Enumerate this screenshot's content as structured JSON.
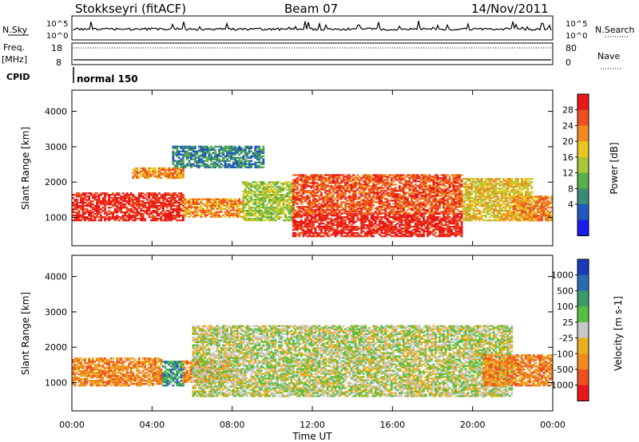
{
  "header": {
    "station": "Stokkseyri (fitACF)",
    "beam": "Beam 07",
    "date": "14/Nov/2011"
  },
  "status": {
    "nsky_label": "N.Sky",
    "nsearch_label": "N.Search",
    "left_ticks": [
      "10^5",
      "10^0"
    ],
    "right_ticks": [
      "10^5",
      "10^0"
    ],
    "freq_label": "Freq.",
    "freq_unit": "[MHz]",
    "freq_ticks": [
      "18",
      "8"
    ],
    "nave_label": "Nave",
    "nave_ticks": [
      "80",
      "0"
    ],
    "cpid_label": "CPID",
    "cpid_value": "normal 150"
  },
  "chart_data": [
    {
      "type": "heatmap",
      "title": "",
      "xlabel": "Time UT",
      "ylabel": "Slant Range [km]",
      "xlim": [
        "00:00",
        "24:00"
      ],
      "ylim": [
        200,
        4600
      ],
      "x_ticks": [
        "00:00",
        "04:00",
        "08:00",
        "12:00",
        "16:00",
        "20:00",
        "00:00"
      ],
      "y_ticks": [
        1000,
        2000,
        3000,
        4000
      ],
      "colorbar": {
        "label": "Power [dB]",
        "ticks": [
          "4",
          "8",
          "12",
          "16",
          "20",
          "24",
          "28"
        ],
        "colors": [
          "#1a1aee",
          "#2058c0",
          "#3a8a78",
          "#58b048",
          "#a8c838",
          "#e8c820",
          "#f08a20",
          "#ee5020",
          "#e81818"
        ]
      },
      "regions": [
        {
          "t": [
            0.0,
            5.5
          ],
          "r": [
            900,
            1700
          ],
          "level": 8
        },
        {
          "t": [
            5.5,
            8.5
          ],
          "r": [
            1000,
            1500
          ],
          "level": 6
        },
        {
          "t": [
            3.0,
            5.5
          ],
          "r": [
            2100,
            2400
          ],
          "level": 6
        },
        {
          "t": [
            5.0,
            9.5
          ],
          "r": [
            2400,
            3000
          ],
          "level": 2
        },
        {
          "t": [
            8.5,
            11.0
          ],
          "r": [
            900,
            2000
          ],
          "level": 4
        },
        {
          "t": [
            11.0,
            19.5
          ],
          "r": [
            450,
            1100
          ],
          "level": 8
        },
        {
          "t": [
            11.0,
            19.5
          ],
          "r": [
            1100,
            2200
          ],
          "level": 7
        },
        {
          "t": [
            19.5,
            23.0
          ],
          "r": [
            900,
            2100
          ],
          "level": 5
        },
        {
          "t": [
            22.0,
            24.0
          ],
          "r": [
            900,
            1600
          ],
          "level": 6
        }
      ]
    },
    {
      "type": "heatmap",
      "title": "",
      "xlabel": "Time UT",
      "ylabel": "Slant Range [km]",
      "xlim": [
        "00:00",
        "24:00"
      ],
      "ylim": [
        200,
        4600
      ],
      "x_ticks": [
        "00:00",
        "04:00",
        "08:00",
        "12:00",
        "16:00",
        "20:00",
        "00:00"
      ],
      "y_ticks": [
        1000,
        2000,
        3000,
        4000
      ],
      "colorbar": {
        "label": "Velocity [m s-1]",
        "ticks": [
          "1000",
          "500",
          "100",
          "25",
          "-25",
          "-100",
          "-500",
          "-1000"
        ],
        "colors": [
          "#1a3aba",
          "#2a6ab0",
          "#3a9a68",
          "#58c040",
          "#c8c8c8",
          "#e8b020",
          "#f08a20",
          "#ee5020",
          "#e81818"
        ]
      },
      "regions": [
        {
          "t": [
            0.0,
            4.5
          ],
          "r": [
            900,
            1700
          ],
          "level": 6
        },
        {
          "t": [
            4.5,
            5.5
          ],
          "r": [
            900,
            1600
          ],
          "level": 2
        },
        {
          "t": [
            5.5,
            8.0
          ],
          "r": [
            1000,
            1600
          ],
          "level": 6
        },
        {
          "t": [
            6.0,
            22.0
          ],
          "r": [
            600,
            2600
          ],
          "level": 4
        },
        {
          "t": [
            20.5,
            24.0
          ],
          "r": [
            900,
            1800
          ],
          "level": 6
        }
      ]
    }
  ]
}
